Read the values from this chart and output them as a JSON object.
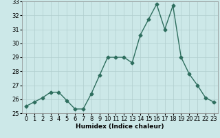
{
  "xlabel": "Humidex (Indice chaleur)",
  "x": [
    0,
    1,
    2,
    3,
    4,
    5,
    6,
    7,
    8,
    9,
    10,
    11,
    12,
    13,
    14,
    15,
    16,
    17,
    18,
    19,
    20,
    21,
    22,
    23
  ],
  "y": [
    25.5,
    25.8,
    26.1,
    26.5,
    26.5,
    25.9,
    25.3,
    25.3,
    26.4,
    27.7,
    29.0,
    29.0,
    29.0,
    28.6,
    30.6,
    31.7,
    32.8,
    31.0,
    32.7,
    29.0,
    27.8,
    27.0,
    26.1,
    25.8
  ],
  "ylim": [
    25,
    33
  ],
  "xlim": [
    -0.5,
    23.5
  ],
  "yticks": [
    25,
    26,
    27,
    28,
    29,
    30,
    31,
    32,
    33
  ],
  "xticks": [
    0,
    1,
    2,
    3,
    4,
    5,
    6,
    7,
    8,
    9,
    10,
    11,
    12,
    13,
    14,
    15,
    16,
    17,
    18,
    19,
    20,
    21,
    22,
    23
  ],
  "line_color": "#2e6e5e",
  "marker": "D",
  "marker_size": 2.5,
  "line_width": 1.0,
  "bg_color": "#cce8e8",
  "grid_color": "#b0cece",
  "axis_fontsize": 6.5,
  "tick_fontsize": 6.0
}
